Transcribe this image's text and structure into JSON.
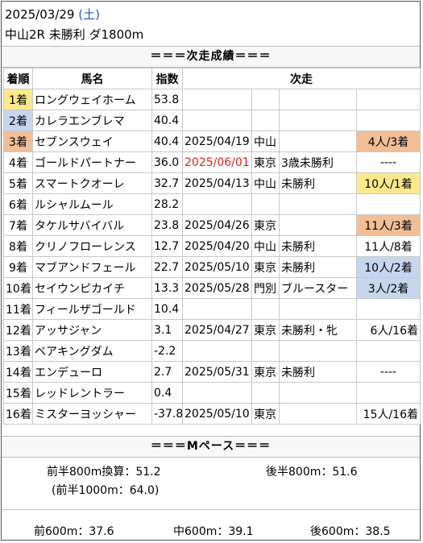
{
  "header": {
    "date": "2025/03/29",
    "weekday": "(土)",
    "race": "中山2R 未勝利 ダ1800m"
  },
  "results_title": "＝＝＝次走成績＝＝＝",
  "columns": [
    "着順",
    "馬名",
    "指数",
    "次走"
  ],
  "colors": {
    "yellow": "#fde98c",
    "blue": "#c6d6ef",
    "orange": "#f1be96",
    "red": "#e0201c",
    "weekday": "#2255cc"
  },
  "rows": [
    {
      "rank": "1着",
      "name": "ロングウェイホーム",
      "index": "53.8",
      "date": "",
      "venue": "",
      "cls": "",
      "result": ""
    },
    {
      "rank": "2着",
      "name": "カレラエンブレマ",
      "index": "40.4",
      "date": "",
      "venue": "",
      "cls": "",
      "result": ""
    },
    {
      "rank": "3着",
      "name": "セブンスウェイ",
      "index": "40.4",
      "date": "2025/04/19",
      "venue": "中山",
      "cls": "",
      "result": "4人/3着"
    },
    {
      "rank": "4着",
      "name": "ゴールドパートナー",
      "index": "36.0",
      "date": "2025/06/01",
      "venue": "東京",
      "cls": "3歳未勝利",
      "result": "----"
    },
    {
      "rank": "5着",
      "name": "スマートクオーレ",
      "index": "32.7",
      "date": "2025/04/13",
      "venue": "中山",
      "cls": "未勝利",
      "result": "10人/1着"
    },
    {
      "rank": "6着",
      "name": "ルシャルムール",
      "index": "28.2",
      "date": "",
      "venue": "",
      "cls": "",
      "result": ""
    },
    {
      "rank": "7着",
      "name": "タケルサバイバル",
      "index": "23.8",
      "date": "2025/04/26",
      "venue": "東京",
      "cls": "",
      "result": "11人/3着"
    },
    {
      "rank": "8着",
      "name": "クリノフローレンス",
      "index": "12.7",
      "date": "2025/04/20",
      "venue": "中山",
      "cls": "未勝利",
      "result": "11人/8着"
    },
    {
      "rank": "9着",
      "name": "マブアンドフェール",
      "index": "22.7",
      "date": "2025/05/10",
      "venue": "東京",
      "cls": "未勝利",
      "result": "10人/2着"
    },
    {
      "rank": "10着",
      "name": "セイウンピカイチ",
      "index": "13.3",
      "date": "2025/05/28",
      "venue": "門別",
      "cls": "ブルースター",
      "result": "3人/2着"
    },
    {
      "rank": "11着",
      "name": "フィールザゴールド",
      "index": "10.4",
      "date": "",
      "venue": "",
      "cls": "",
      "result": ""
    },
    {
      "rank": "12着",
      "name": "アッサジャン",
      "index": "3.1",
      "date": "2025/04/27",
      "venue": "東京",
      "cls": "未勝利・牝",
      "result": "6人/16着"
    },
    {
      "rank": "13着",
      "name": "ベアキングダム",
      "index": "-2.2",
      "date": "",
      "venue": "",
      "cls": "",
      "result": ""
    },
    {
      "rank": "14着",
      "name": "エンデューロ",
      "index": "2.7",
      "date": "2025/05/31",
      "venue": "東京",
      "cls": "未勝利",
      "result": "----"
    },
    {
      "rank": "15着",
      "name": "レッドレントラー",
      "index": "0.4",
      "date": "",
      "venue": "",
      "cls": "",
      "result": ""
    },
    {
      "rank": "16着",
      "name": "ミスターヨッシャー",
      "index": "-37.8",
      "date": "2025/05/10",
      "venue": "東京",
      "cls": "",
      "result": "15人/16着"
    }
  ],
  "pace": {
    "title": "＝＝＝Mペース＝＝＝",
    "first800": "前半800m換算：51.2",
    "first1000": "(前半1000m：64.0)",
    "last800": "後半800m：51.6",
    "front600": "前600m：37.6",
    "mid600": "中600m：39.1",
    "back600": "後600m：38.5"
  }
}
